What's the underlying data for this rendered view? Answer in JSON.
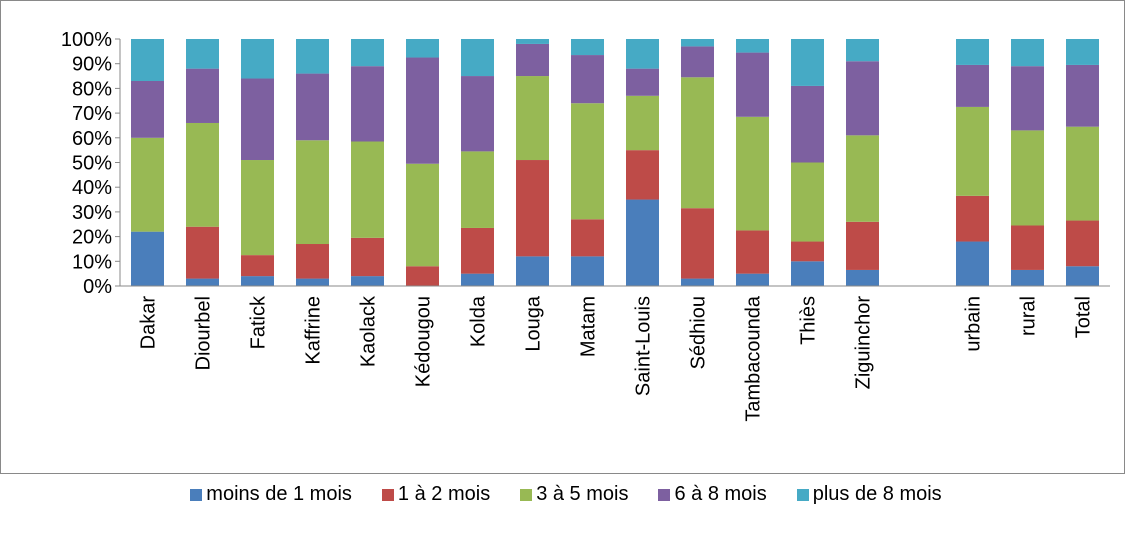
{
  "chart_data": {
    "type": "bar",
    "stacked": true,
    "percent": true,
    "categories": [
      "Dakar",
      "Diourbel",
      "Fatick",
      "Kaffrine",
      "Kaolack",
      "Kédougou",
      "Kolda",
      "Louga",
      "Matam",
      "Saint-Louis",
      "Sédhiou",
      "Tambacounda",
      "Thiès",
      "Ziguinchor",
      "",
      "urbain",
      "rural",
      "Total"
    ],
    "series": [
      {
        "name": "moins de 1 mois",
        "color": "#4a7ebb",
        "values": [
          22,
          3,
          4,
          3,
          4,
          0,
          5,
          12,
          12,
          35,
          3,
          5,
          10,
          6.5,
          null,
          18,
          6.5,
          8
        ]
      },
      {
        "name": "1 à 2 mois",
        "color": "#be4b48",
        "values": [
          0,
          21,
          8.5,
          14,
          15.5,
          8,
          18.5,
          39,
          15,
          20,
          28.5,
          17.5,
          8,
          19.5,
          null,
          18.5,
          18,
          18.5
        ]
      },
      {
        "name": "3 à 5 mois",
        "color": "#98b954",
        "values": [
          38,
          42,
          38.5,
          42,
          39,
          41.5,
          31,
          34,
          47,
          22,
          53,
          46,
          32,
          35,
          null,
          36,
          38.5,
          38
        ]
      },
      {
        "name": "6 à 8 mois",
        "color": "#7d60a0",
        "values": [
          23,
          22,
          33,
          27,
          30.5,
          43,
          30.5,
          13,
          19.5,
          11,
          12.5,
          26,
          31,
          30,
          null,
          17,
          26,
          25
        ]
      },
      {
        "name": "plus de 8 mois",
        "color": "#46aac5",
        "values": [
          17,
          12,
          16,
          14,
          11,
          7.5,
          15,
          2,
          6.5,
          12,
          3,
          5.5,
          19,
          9,
          null,
          10.5,
          11,
          10.5
        ]
      }
    ],
    "yticks": [
      "0%",
      "10%",
      "20%",
      "30%",
      "40%",
      "50%",
      "60%",
      "70%",
      "80%",
      "90%",
      "100%"
    ],
    "ylim": [
      0,
      100
    ],
    "grid": false,
    "legend_position": "bottom"
  }
}
